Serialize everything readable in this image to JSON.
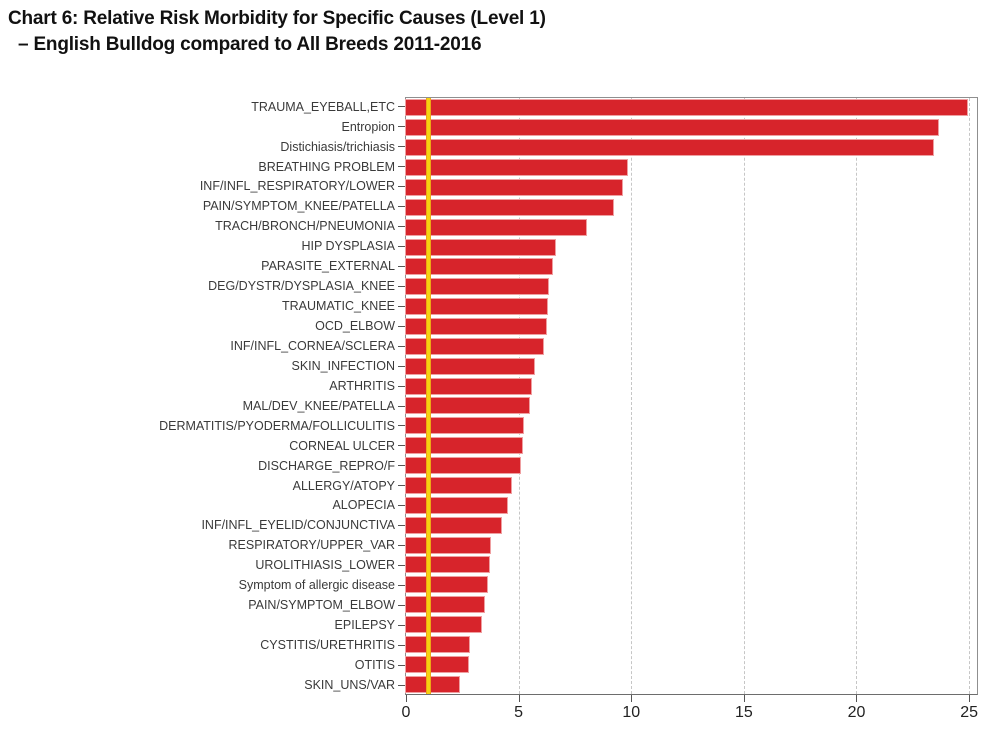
{
  "title": {
    "line1": "Chart 6: Relative Risk Morbidity for Specific Causes (Level 1)",
    "line2": "– English Bulldog compared to All Breeds 2011-2016"
  },
  "chart_data": {
    "type": "bar",
    "orientation": "horizontal",
    "title": "Chart 6: Relative Risk Morbidity for Specific Causes (Level 1) – English Bulldog compared to All Breeds 2011-2016",
    "xlabel": "",
    "ylabel": "",
    "legend": "none",
    "grid": "dashed vertical gridlines at x ticks",
    "xlim": [
      0,
      25.35
    ],
    "xticks": [
      0,
      5,
      10,
      15,
      20,
      25
    ],
    "reference_line": {
      "x": 1,
      "color": "#f2c513"
    },
    "bar_color": "#d7242b",
    "categories": [
      "TRAUMA_EYEBALL,ETC",
      "Entropion",
      "Distichiasis/trichiasis",
      "BREATHING PROBLEM",
      "INF/INFL_RESPIRATORY/LOWER",
      "PAIN/SYMPTOM_KNEE/PATELLA",
      "TRACH/BRONCH/PNEUMONIA",
      "HIP DYSPLASIA",
      "PARASITE_EXTERNAL",
      "DEG/DYSTR/DYSPLASIA_KNEE",
      "TRAUMATIC_KNEE",
      "OCD_ELBOW",
      "INF/INFL_CORNEA/SCLERA",
      "SKIN_INFECTION",
      "ARTHRITIS",
      "MAL/DEV_KNEE/PATELLA",
      "DERMATITIS/PYODERMA/FOLLICULITIS",
      "CORNEAL ULCER",
      "DISCHARGE_REPRO/F",
      "ALLERGY/ATOPY",
      "ALOPECIA",
      "INF/INFL_EYELID/CONJUNCTIVA",
      "RESPIRATORY/UPPER_VAR",
      "UROLITHIASIS_LOWER",
      "Symptom of allergic disease",
      "PAIN/SYMPTOM_ELBOW",
      "EPILEPSY",
      "CYSTITIS/URETHRITIS",
      "OTITIS",
      "SKIN_UNS/VAR"
    ],
    "values": [
      24.9,
      23.6,
      23.4,
      9.8,
      9.6,
      9.2,
      8.0,
      6.6,
      6.5,
      6.3,
      6.25,
      6.2,
      6.1,
      5.7,
      5.55,
      5.45,
      5.2,
      5.15,
      5.05,
      4.65,
      4.5,
      4.2,
      3.75,
      3.7,
      3.6,
      3.45,
      3.35,
      2.8,
      2.75,
      2.35
    ]
  },
  "colors": {
    "bar": "#d7242b",
    "bar_edge": "#ef9fa1",
    "reference_line": "#f2c513",
    "gridline": "#c6c6c6",
    "frame": "#8f8f8f",
    "text": "#3a3a3a"
  }
}
